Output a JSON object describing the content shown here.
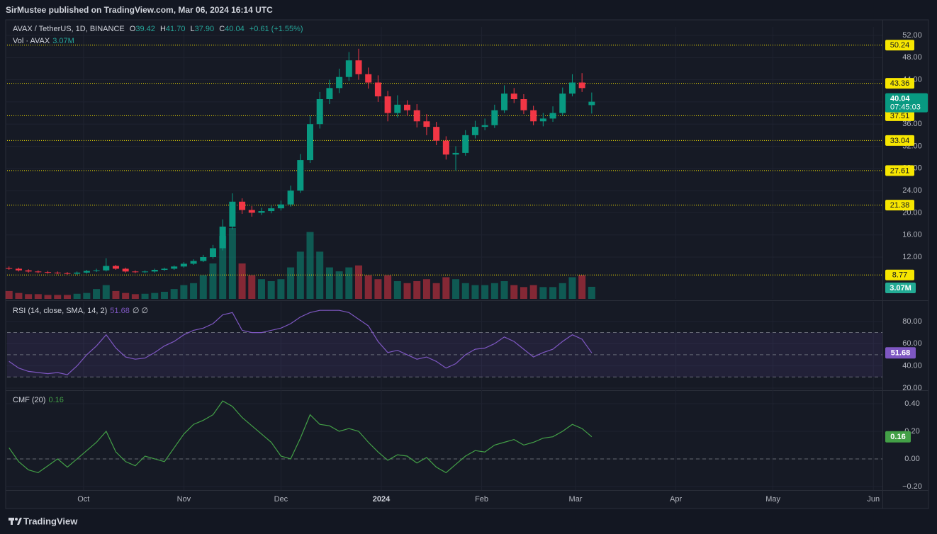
{
  "header": {
    "published": "SirMustee published on TradingView.com, Mar 06, 2024 16:14 UTC",
    "symbol": "AVAX / TetherUS, 1D, BINANCE",
    "ohlc": [
      {
        "letter": "O",
        "value": "39.42"
      },
      {
        "letter": "H",
        "value": "41.70"
      },
      {
        "letter": "L",
        "value": "37.90"
      },
      {
        "letter": "C",
        "value": "40.04"
      }
    ],
    "change": "+0.61 (+1.55%)",
    "countdown": "07:45:03"
  },
  "footer": {
    "brand": "TradingView"
  },
  "chart_data": {
    "type": "candlestick",
    "up_color": "#089981",
    "down_color": "#f23645",
    "level_color": "#f7e600",
    "grid": true,
    "x": [
      -23,
      -20,
      -17,
      -14,
      -11,
      -8,
      -5,
      -2,
      1,
      4,
      7,
      10,
      13,
      16,
      19,
      22,
      25,
      28,
      31,
      34,
      37,
      40,
      43,
      46,
      49,
      52,
      55,
      58,
      61,
      64,
      67,
      70,
      73,
      76,
      79,
      82,
      85,
      88,
      91,
      94,
      97,
      100,
      103,
      106,
      109,
      112,
      115,
      118,
      121,
      124,
      127,
      130,
      133,
      136,
      139,
      142,
      145,
      148,
      151,
      154,
      157
    ],
    "xlim": [
      -23.6,
      246.8
    ],
    "xticks": [
      {
        "value": 0,
        "label": "Oct"
      },
      {
        "value": 31,
        "label": "Nov"
      },
      {
        "value": 61,
        "label": "Dec"
      },
      {
        "value": 92,
        "label": "2024"
      },
      {
        "value": 123,
        "label": "Feb"
      },
      {
        "value": 152,
        "label": "Mar"
      },
      {
        "value": 183,
        "label": "Apr"
      },
      {
        "value": 213,
        "label": "May"
      },
      {
        "value": 244,
        "label": "Jun"
      }
    ],
    "ylim": [
      4.46,
      53.28
    ],
    "yticks": [
      {
        "value": 12,
        "label": "12.00"
      },
      {
        "value": 16,
        "label": "16.00"
      },
      {
        "value": 20,
        "label": "20.00"
      },
      {
        "value": 24,
        "label": "24.00"
      },
      {
        "value": 28,
        "label": "28.00"
      },
      {
        "value": 32,
        "label": "32.00"
      },
      {
        "value": 36,
        "label": "36.00"
      },
      {
        "value": 40,
        "label": "40.00"
      },
      {
        "value": 44,
        "label": "44.00"
      },
      {
        "value": 48,
        "label": "48.00"
      },
      {
        "value": 52,
        "label": "52.00"
      }
    ],
    "candles": {
      "open": [
        10.0,
        9.9,
        9.6,
        9.4,
        9.3,
        9.2,
        9.1,
        9.0,
        9.2,
        9.5,
        9.6,
        10.4,
        9.9,
        9.4,
        9.3,
        9.4,
        9.7,
        9.9,
        10.3,
        10.8,
        11.3,
        12.0,
        13.6,
        17.5,
        22.0,
        20.5,
        20.0,
        20.3,
        20.8,
        21.5,
        24.0,
        29.5,
        36.0,
        40.5,
        42.5,
        44.5,
        47.5,
        45.0,
        43.5,
        41.0,
        38.0,
        39.5,
        38.5,
        36.5,
        35.5,
        33.0,
        30.5,
        30.8,
        34.0,
        35.5,
        35.8,
        38.5,
        41.5,
        40.5,
        38.5,
        36.5,
        37.0,
        38.0,
        41.5,
        43.5,
        39.42
      ],
      "high": [
        10.3,
        10.1,
        9.8,
        9.6,
        9.5,
        9.4,
        9.3,
        9.4,
        9.7,
        9.9,
        11.8,
        10.6,
        10.1,
        9.6,
        9.6,
        9.9,
        10.1,
        10.5,
        11.1,
        11.6,
        12.4,
        14.2,
        18.8,
        23.5,
        22.6,
        21.2,
        20.9,
        21.3,
        22.2,
        24.9,
        30.6,
        37.5,
        41.8,
        44.0,
        46.0,
        49.0,
        49.6,
        46.2,
        44.8,
        42.0,
        41.2,
        40.3,
        39.6,
        37.8,
        36.4,
        33.8,
        32.0,
        34.9,
        36.6,
        37.0,
        39.5,
        43.0,
        42.5,
        41.4,
        39.3,
        38.0,
        39.2,
        42.6,
        45.0,
        45.2,
        41.7
      ],
      "low": [
        9.7,
        9.4,
        9.2,
        9.1,
        9.0,
        8.9,
        8.8,
        8.8,
        9.0,
        9.3,
        9.4,
        9.7,
        9.2,
        9.1,
        9.1,
        9.2,
        9.5,
        9.7,
        10.1,
        10.6,
        11.1,
        11.7,
        13.2,
        17.0,
        19.8,
        19.3,
        19.6,
        19.9,
        20.4,
        21.1,
        23.6,
        29.0,
        35.2,
        39.6,
        41.6,
        43.8,
        44.0,
        42.4,
        40.0,
        36.5,
        37.2,
        37.5,
        35.4,
        34.0,
        32.2,
        29.6,
        27.6,
        30.3,
        33.4,
        34.9,
        35.3,
        38.0,
        39.8,
        37.8,
        35.8,
        35.6,
        36.4,
        37.5,
        41.0,
        41.8,
        37.9
      ],
      "close": [
        9.9,
        9.6,
        9.4,
        9.3,
        9.2,
        9.1,
        9.0,
        9.2,
        9.5,
        9.6,
        10.4,
        9.9,
        9.4,
        9.3,
        9.4,
        9.7,
        9.9,
        10.3,
        10.8,
        11.3,
        12.0,
        13.6,
        17.5,
        22.0,
        20.5,
        20.0,
        20.3,
        20.8,
        21.5,
        24.0,
        29.5,
        36.0,
        40.5,
        42.5,
        44.5,
        47.5,
        45.0,
        43.5,
        41.0,
        38.0,
        39.5,
        38.5,
        36.5,
        35.5,
        33.0,
        30.5,
        30.8,
        34.0,
        35.5,
        35.8,
        38.5,
        41.5,
        40.5,
        38.5,
        36.5,
        37.0,
        38.0,
        41.5,
        43.5,
        42.5,
        40.04
      ]
    },
    "levels": [
      50.24,
      43.36,
      37.51,
      33.04,
      27.61,
      21.38,
      8.77
    ],
    "volume": {
      "name": "Vol · AVAX",
      "last_label": "3.07M",
      "color": "#22ab94",
      "values": [
        2000000,
        1500000,
        1200000,
        1200000,
        1000000,
        1000000,
        1000000,
        1300000,
        1500000,
        2500000,
        3500000,
        2000000,
        1500000,
        1200000,
        1300000,
        1500000,
        1800000,
        2500000,
        3500000,
        4000000,
        6000000,
        9000000,
        16000000,
        18000000,
        9000000,
        6000000,
        5000000,
        4500000,
        5000000,
        8000000,
        12000000,
        17000000,
        12000000,
        8000000,
        7000000,
        8000000,
        8500000,
        6000000,
        5000000,
        6000000,
        4500000,
        4000000,
        4500000,
        5000000,
        4000000,
        5500000,
        5000000,
        4000000,
        3500000,
        3500000,
        4000000,
        4500000,
        3500000,
        3000000,
        3500000,
        3000000,
        3000000,
        4000000,
        5500000,
        6000000,
        3070000
      ]
    },
    "rsi": {
      "name": "RSI (14, close, SMA, 14, 2)",
      "extra": "∅ ∅",
      "color": "#7e57c2",
      "ylim": [
        18.7,
        96.5
      ],
      "yticks": [
        {
          "value": 20,
          "label": "20.00"
        },
        {
          "value": 40,
          "label": "40.00"
        },
        {
          "value": 60,
          "label": "60.00"
        },
        {
          "value": 80,
          "label": "80.00"
        }
      ],
      "levels": [
        70,
        50,
        30
      ],
      "values": [
        44,
        38,
        35,
        34,
        33,
        34,
        32,
        40,
        50,
        58,
        68,
        56,
        48,
        46,
        47,
        52,
        58,
        62,
        68,
        72,
        74,
        78,
        86,
        88,
        72,
        70,
        70,
        72,
        74,
        78,
        84,
        88,
        90,
        90,
        90,
        88,
        82,
        76,
        62,
        52,
        54,
        50,
        46,
        48,
        44,
        38,
        42,
        50,
        55,
        56,
        60,
        66,
        62,
        55,
        48,
        52,
        55,
        62,
        68,
        64,
        51.68
      ]
    },
    "cmf": {
      "name": "CMF (20)",
      "color": "#43a047",
      "ylim": [
        -0.226,
        0.487
      ],
      "yticks": [
        {
          "value": -0.2,
          "label": "−0.20"
        },
        {
          "value": 0,
          "label": "0.00"
        },
        {
          "value": 0.2,
          "label": "0.20"
        },
        {
          "value": 0.4,
          "label": "0.40"
        }
      ],
      "values": [
        0.08,
        -0.02,
        -0.08,
        -0.1,
        -0.05,
        0.0,
        -0.06,
        0.0,
        0.06,
        0.12,
        0.2,
        0.05,
        -0.02,
        -0.05,
        0.02,
        0.0,
        -0.02,
        0.08,
        0.18,
        0.25,
        0.28,
        0.32,
        0.42,
        0.38,
        0.3,
        0.24,
        0.18,
        0.12,
        0.02,
        0.0,
        0.15,
        0.32,
        0.25,
        0.24,
        0.2,
        0.22,
        0.2,
        0.12,
        0.05,
        -0.01,
        0.03,
        0.02,
        -0.03,
        0.01,
        -0.06,
        -0.1,
        -0.04,
        0.02,
        0.06,
        0.05,
        0.1,
        0.12,
        0.14,
        0.1,
        0.12,
        0.15,
        0.16,
        0.2,
        0.25,
        0.22,
        0.16
      ]
    }
  }
}
